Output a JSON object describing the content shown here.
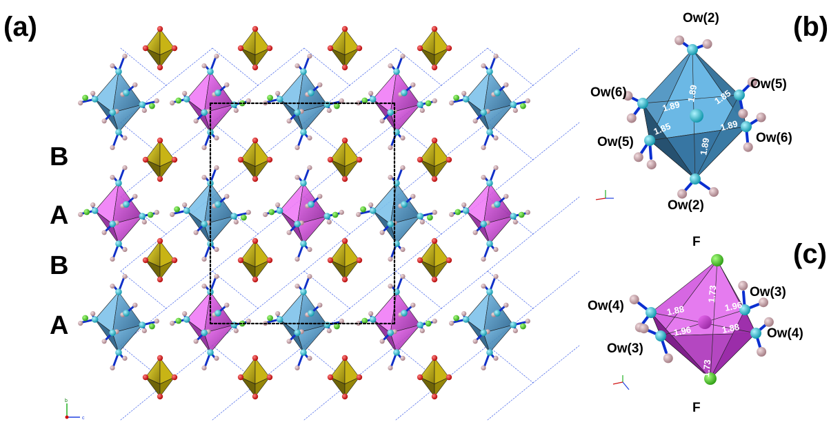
{
  "figure": {
    "panels": [
      {
        "id": "a",
        "label": "(a)"
      },
      {
        "id": "b",
        "label": "(b)"
      },
      {
        "id": "c",
        "label": "(c)"
      }
    ],
    "layers": [
      "B",
      "A",
      "B",
      "A"
    ],
    "axis_labels": {
      "vertical": "b",
      "horizontal": "c"
    }
  },
  "panel_b": {
    "atoms": [
      "Ow(2)",
      "Ow(5)",
      "Ow(6)",
      "Ow(6)",
      "Ow(5)",
      "Ow(2)"
    ],
    "bonds": [
      "1.89",
      "1.85",
      "1.89",
      "1.85",
      "1.89",
      "1.89"
    ]
  },
  "panel_c": {
    "atoms": [
      "F",
      "Ow(3)",
      "Ow(4)",
      "Ow(4)",
      "Ow(3)",
      "F"
    ],
    "bonds": [
      "1.73",
      "1.96",
      "1.88",
      "1.96",
      "1.88",
      "1.73"
    ]
  },
  "colors": {
    "blue_octahedron": "#3a86b8",
    "magenta_octahedron": "#c23ad0",
    "yellow_tetrahedron": "#d8c820",
    "oxygen": "#d81010",
    "water_oxygen": "#20c0d0",
    "hydrogen": "#c8a0a8",
    "fluorine": "#40d020",
    "hbond": "#3050e0"
  }
}
